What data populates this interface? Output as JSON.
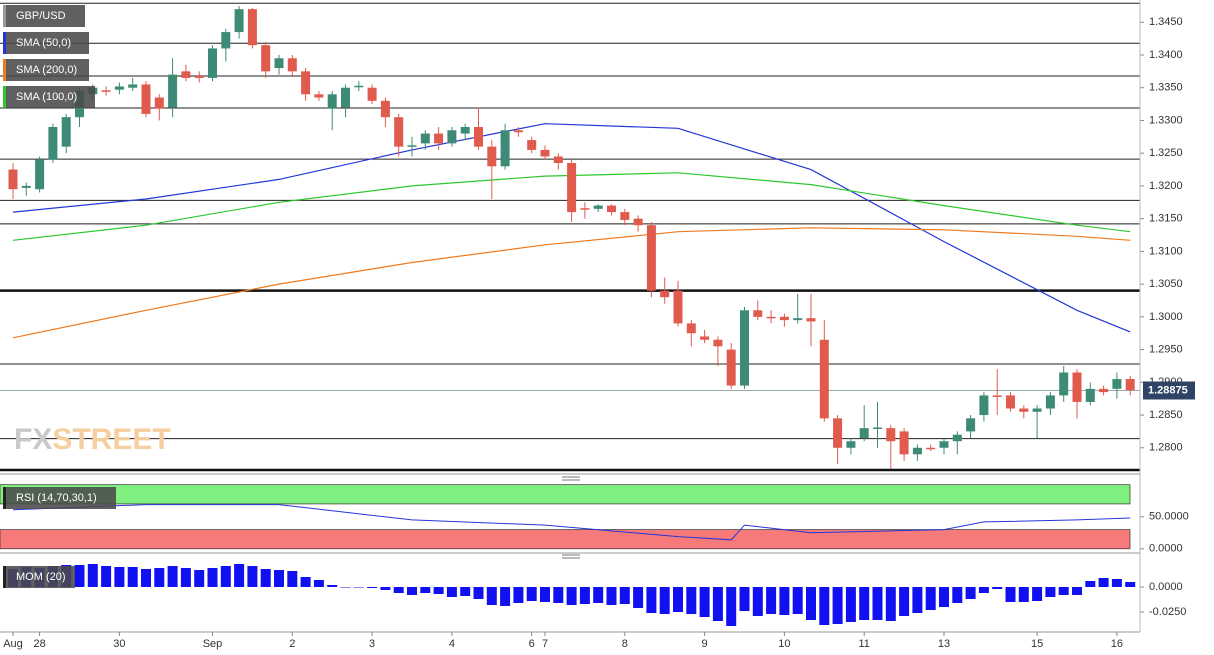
{
  "chart_data": {
    "type": "candlestick",
    "symbol": "GBP/USD",
    "categories": [
      "Aug",
      null,
      "28",
      null,
      null,
      null,
      null,
      null,
      "30",
      null,
      null,
      null,
      null,
      null,
      null,
      "Sep",
      null,
      null,
      null,
      null,
      null,
      "2",
      null,
      null,
      null,
      null,
      null,
      "3",
      null,
      null,
      null,
      null,
      null,
      "4",
      null,
      null,
      null,
      null,
      null,
      "6",
      "7",
      null,
      null,
      null,
      null,
      null,
      "8",
      null,
      null,
      null,
      null,
      null,
      "9",
      null,
      null,
      null,
      null,
      null,
      "10",
      null,
      null,
      null,
      null,
      null,
      "11",
      null,
      null,
      null,
      null,
      null,
      "13",
      null,
      null,
      null,
      null,
      null,
      null,
      "15",
      null,
      null,
      null,
      null,
      null,
      "16",
      null
    ],
    "ohlc": [
      [
        1.3225,
        1.3235,
        1.318,
        1.3195
      ],
      [
        1.3197,
        1.3205,
        1.3185,
        1.32
      ],
      [
        1.3195,
        1.3245,
        1.319,
        1.324
      ],
      [
        1.324,
        1.3295,
        1.3235,
        1.329
      ],
      [
        1.326,
        1.331,
        1.325,
        1.3305
      ],
      [
        1.3305,
        1.335,
        1.329,
        1.3345
      ],
      [
        1.334,
        1.3355,
        1.333,
        1.335
      ],
      [
        1.3346,
        1.3352,
        1.3338,
        1.3345
      ],
      [
        1.3347,
        1.3358,
        1.334,
        1.3352
      ],
      [
        1.335,
        1.3365,
        1.3345,
        1.3355
      ],
      [
        1.3355,
        1.336,
        1.3305,
        1.331
      ],
      [
        1.3335,
        1.334,
        1.33,
        1.3318
      ],
      [
        1.332,
        1.3395,
        1.3305,
        1.337
      ],
      [
        1.3375,
        1.3385,
        1.336,
        1.3365
      ],
      [
        1.3368,
        1.3375,
        1.3358,
        1.3365
      ],
      [
        1.3365,
        1.3415,
        1.336,
        1.341
      ],
      [
        1.341,
        1.344,
        1.339,
        1.3435
      ],
      [
        1.3435,
        1.3475,
        1.3425,
        1.347
      ],
      [
        1.347,
        1.3472,
        1.341,
        1.3415
      ],
      [
        1.3415,
        1.342,
        1.3365,
        1.3375
      ],
      [
        1.338,
        1.34,
        1.337,
        1.3395
      ],
      [
        1.3395,
        1.34,
        1.3368,
        1.3375
      ],
      [
        1.3375,
        1.338,
        1.333,
        1.334
      ],
      [
        1.334,
        1.3345,
        1.333,
        1.3335
      ],
      [
        1.3318,
        1.3345,
        1.3285,
        1.334
      ],
      [
        1.332,
        1.3355,
        1.3305,
        1.335
      ],
      [
        1.3351,
        1.336,
        1.3345,
        1.3353
      ],
      [
        1.335,
        1.3355,
        1.3325,
        1.333
      ],
      [
        1.333,
        1.3335,
        1.329,
        1.3305
      ],
      [
        1.3305,
        1.331,
        1.3245,
        1.326
      ],
      [
        1.326,
        1.3275,
        1.3245,
        1.3262
      ],
      [
        1.3265,
        1.3285,
        1.3255,
        1.328
      ],
      [
        1.328,
        1.329,
        1.3255,
        1.3265
      ],
      [
        1.3265,
        1.329,
        1.326,
        1.3285
      ],
      [
        1.328,
        1.3295,
        1.327,
        1.329
      ],
      [
        1.329,
        1.332,
        1.3255,
        1.326
      ],
      [
        1.326,
        1.327,
        1.318,
        1.323
      ],
      [
        1.323,
        1.3295,
        1.3225,
        1.3285
      ],
      [
        1.3285,
        1.329,
        1.3275,
        1.3282
      ],
      [
        1.327,
        1.3275,
        1.325,
        1.3255
      ],
      [
        1.3255,
        1.3262,
        1.324,
        1.3245
      ],
      [
        1.3245,
        1.325,
        1.3225,
        1.3235
      ],
      [
        1.3235,
        1.324,
        1.3145,
        1.316
      ],
      [
        1.3166,
        1.3175,
        1.315,
        1.3164
      ],
      [
        1.3165,
        1.3172,
        1.316,
        1.317
      ],
      [
        1.317,
        1.3172,
        1.3155,
        1.316
      ],
      [
        1.316,
        1.3165,
        1.314,
        1.3148
      ],
      [
        1.315,
        1.3155,
        1.313,
        1.314
      ],
      [
        1.314,
        1.3145,
        1.303,
        1.304
      ],
      [
        1.304,
        1.306,
        1.302,
        1.303
      ],
      [
        1.304,
        1.3055,
        1.2985,
        1.299
      ],
      [
        1.299,
        1.2995,
        1.2955,
        1.2975
      ],
      [
        1.297,
        1.298,
        1.296,
        1.2965
      ],
      [
        1.2965,
        1.297,
        1.2925,
        1.2955
      ],
      [
        1.295,
        1.296,
        1.289,
        1.2895
      ],
      [
        1.2895,
        1.3015,
        1.289,
        1.301
      ],
      [
        1.301,
        1.3025,
        1.2995,
        1.3
      ],
      [
        1.3,
        1.301,
        1.299,
        1.2998
      ],
      [
        1.3,
        1.3005,
        1.2985,
        1.2995
      ],
      [
        1.2995,
        1.3035,
        1.299,
        1.2998
      ],
      [
        1.2998,
        1.3035,
        1.2955,
        1.2993
      ],
      [
        1.2965,
        1.2995,
        1.284,
        1.2845
      ],
      [
        1.2845,
        1.285,
        1.2775,
        1.28
      ],
      [
        1.28,
        1.2815,
        1.279,
        1.281
      ],
      [
        1.2815,
        1.2865,
        1.281,
        1.283
      ],
      [
        1.283,
        1.287,
        1.28,
        1.2831
      ],
      [
        1.283,
        1.2835,
        1.2768,
        1.281
      ],
      [
        1.2825,
        1.283,
        1.278,
        1.279
      ],
      [
        1.279,
        1.2805,
        1.278,
        1.28
      ],
      [
        1.28,
        1.2805,
        1.2795,
        1.2799
      ],
      [
        1.28,
        1.2815,
        1.279,
        1.281
      ],
      [
        1.281,
        1.2825,
        1.279,
        1.282
      ],
      [
        1.2825,
        1.285,
        1.2815,
        1.2845
      ],
      [
        1.285,
        1.2885,
        1.284,
        1.288
      ],
      [
        1.288,
        1.292,
        1.285,
        1.2879
      ],
      [
        1.288,
        1.2885,
        1.2855,
        1.286
      ],
      [
        1.286,
        1.2865,
        1.2845,
        1.2855
      ],
      [
        1.2855,
        1.2865,
        1.2815,
        1.286
      ],
      [
        1.286,
        1.2885,
        1.285,
        1.288
      ],
      [
        1.288,
        1.2925,
        1.287,
        1.2915
      ],
      [
        1.2915,
        1.292,
        1.2845,
        1.287
      ],
      [
        1.287,
        1.29,
        1.2865,
        1.289
      ],
      [
        1.289,
        1.2895,
        1.288,
        1.2885
      ],
      [
        1.289,
        1.2915,
        1.2875,
        1.2905
      ],
      [
        1.2905,
        1.291,
        1.288,
        1.2888
      ]
    ],
    "up_color": "#3d8b77",
    "down_color": "#e05a4e",
    "ylim": [
      1.2763,
      1.3484
    ],
    "yticks": [
      {
        "value": 1.345,
        "label": "1.3450"
      },
      {
        "value": 1.34,
        "label": "1.3400"
      },
      {
        "value": 1.335,
        "label": "1.3350"
      },
      {
        "value": 1.33,
        "label": "1.3300"
      },
      {
        "value": 1.325,
        "label": "1.3250"
      },
      {
        "value": 1.32,
        "label": "1.3200"
      },
      {
        "value": 1.315,
        "label": "1.3150"
      },
      {
        "value": 1.31,
        "label": "1.3100"
      },
      {
        "value": 1.305,
        "label": "1.3050"
      },
      {
        "value": 1.3,
        "label": "1.3000"
      },
      {
        "value": 1.295,
        "label": "1.2950"
      },
      {
        "value": 1.29,
        "label": "1.2900"
      },
      {
        "value": 1.285,
        "label": "1.2850"
      },
      {
        "value": 1.28,
        "label": "1.2800"
      }
    ],
    "levels": [
      1.3479,
      1.3418,
      1.3368,
      1.3319,
      1.3241,
      1.3178,
      1.3142,
      1.2928,
      1.2814
    ],
    "strong_levels": [
      1.304,
      1.2766
    ],
    "last_price": {
      "value": 1.28875,
      "label": "1.28875"
    },
    "series": [
      {
        "name": "SMA (50,0)",
        "color": "#2436d6",
        "x": [
          0,
          10,
          20,
          30,
          40,
          50,
          60,
          70,
          80,
          84
        ],
        "values": [
          1.316,
          1.318,
          1.321,
          1.3255,
          1.3295,
          1.3288,
          1.3225,
          1.3115,
          1.301,
          1.2977
        ]
      },
      {
        "name": "SMA (200,0)",
        "color": "#f07a1e",
        "x": [
          0,
          10,
          20,
          30,
          40,
          50,
          60,
          70,
          80,
          84
        ],
        "values": [
          1.2968,
          1.301,
          1.305,
          1.3083,
          1.311,
          1.313,
          1.3136,
          1.3133,
          1.3123,
          1.3117
        ]
      },
      {
        "name": "SMA (100,0)",
        "color": "#2ec82e",
        "x": [
          0,
          10,
          20,
          30,
          40,
          50,
          60,
          70,
          80,
          84
        ],
        "values": [
          1.3117,
          1.314,
          1.3175,
          1.32,
          1.3215,
          1.322,
          1.3202,
          1.317,
          1.314,
          1.313
        ]
      }
    ],
    "watermark": [
      "FX",
      "STREET"
    ],
    "rsi": {
      "name": "RSI (14,70,30,1)",
      "color": "#2436d6",
      "x": [
        0,
        10,
        20,
        30,
        40,
        50,
        54,
        55,
        60,
        70,
        73,
        80,
        84
      ],
      "values": [
        61,
        69,
        69,
        45,
        37,
        19,
        14,
        37,
        25,
        30,
        42,
        45,
        48
      ],
      "overbought": [
        70,
        100
      ],
      "oversold": [
        0,
        30
      ],
      "overbought_color": "#80f080",
      "oversold_color": "#f77a7a",
      "ylim": [
        -5,
        112
      ],
      "yticks": [
        {
          "value": 50,
          "label": "50.0000"
        },
        {
          "value": 0,
          "label": "0.0000"
        }
      ]
    },
    "mom": {
      "name": "MOM (20)",
      "color": "#1010f0",
      "values": [
        0.018,
        0.02,
        0.019,
        0.021,
        0.022,
        0.022,
        0.023,
        0.021,
        0.02,
        0.02,
        0.018,
        0.019,
        0.021,
        0.019,
        0.017,
        0.019,
        0.021,
        0.023,
        0.021,
        0.018,
        0.017,
        0.016,
        0.01,
        0.007,
        0.002,
        0,
        0,
        -0.001,
        -0.003,
        -0.006,
        -0.008,
        -0.006,
        -0.007,
        -0.01,
        -0.009,
        -0.012,
        -0.018,
        -0.019,
        -0.016,
        -0.014,
        -0.015,
        -0.016,
        -0.018,
        -0.017,
        -0.016,
        -0.018,
        -0.017,
        -0.021,
        -0.026,
        -0.027,
        -0.025,
        -0.027,
        -0.03,
        -0.034,
        -0.039,
        -0.024,
        -0.029,
        -0.027,
        -0.028,
        -0.027,
        -0.033,
        -0.038,
        -0.037,
        -0.035,
        -0.033,
        -0.033,
        -0.034,
        -0.029,
        -0.026,
        -0.023,
        -0.02,
        -0.016,
        -0.012,
        -0.006,
        -0.002,
        -0.015,
        -0.015,
        -0.014,
        -0.01,
        -0.008,
        -0.008,
        0.006,
        0.009,
        0.008,
        0.005
      ],
      "ylim": [
        -0.045,
        0.031
      ],
      "yticks": [
        {
          "value": 0,
          "label": "0.0000"
        },
        {
          "value": -0.025,
          "label": "-0.0250"
        }
      ]
    }
  }
}
